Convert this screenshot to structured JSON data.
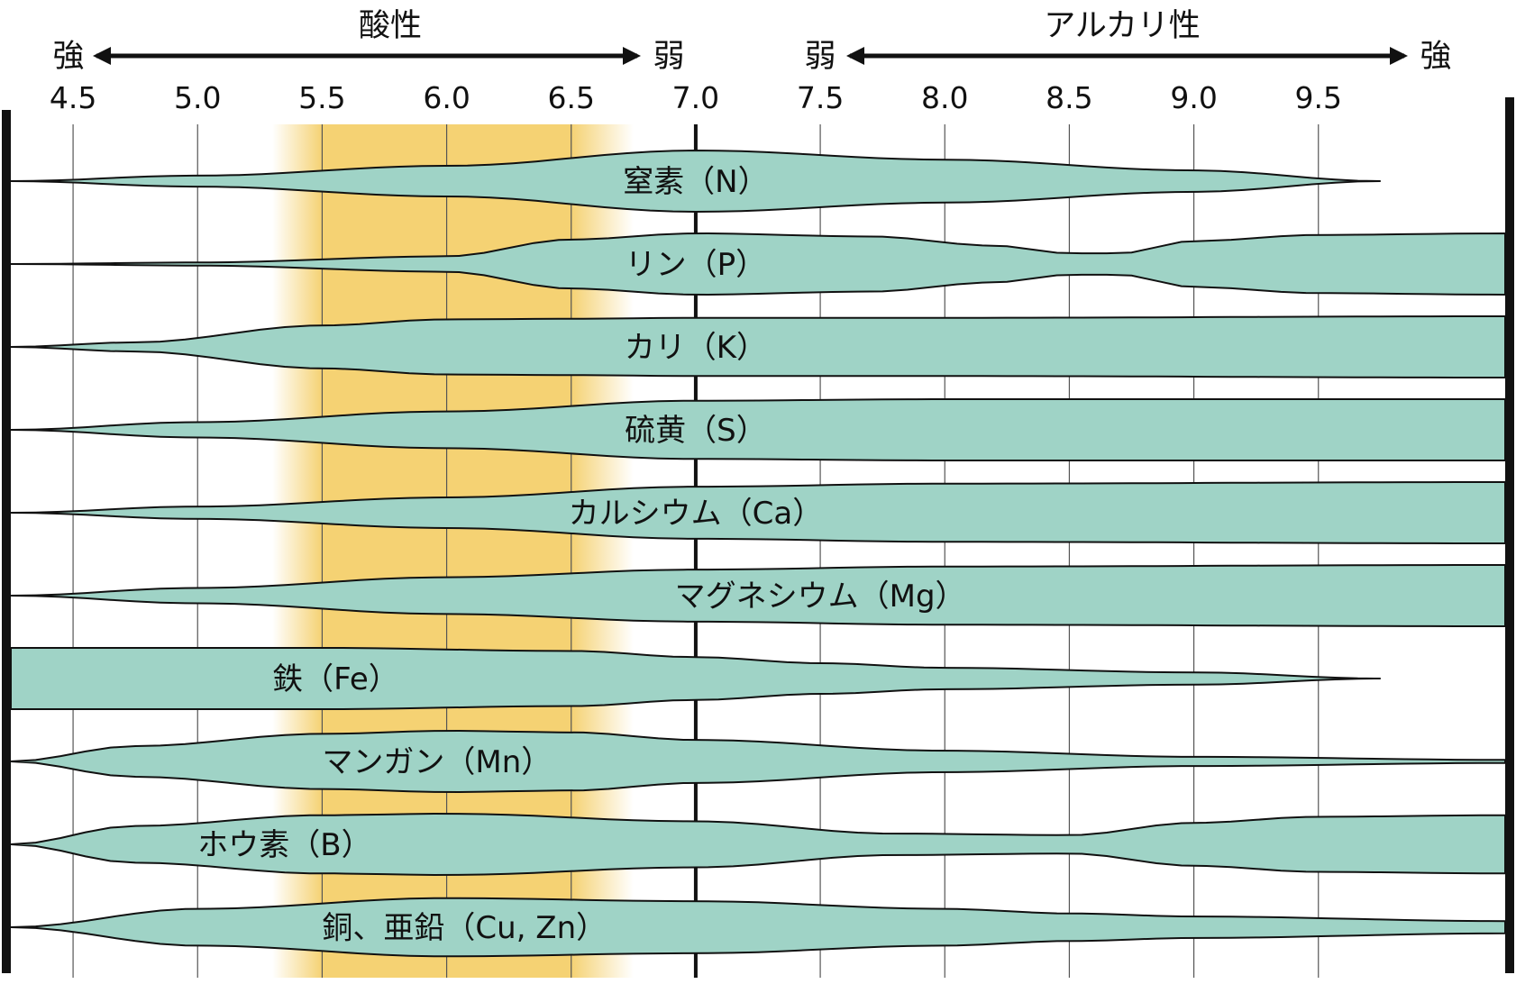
{
  "chart_data": {
    "type": "area",
    "title": "",
    "x_axis": {
      "range": [
        4.25,
        10.25
      ],
      "ticks": [
        4.5,
        5.0,
        5.5,
        6.0,
        6.5,
        7.0,
        7.5,
        8.0,
        8.5,
        9.0,
        9.5
      ],
      "tick_labels": [
        "4.5",
        "5.0",
        "5.5",
        "6.0",
        "6.5",
        "7.0",
        "7.5",
        "8.0",
        "8.5",
        "9.0",
        "9.5"
      ],
      "neutral": 7.0
    },
    "headers": {
      "acidic": "酸性",
      "alkaline": "アルカリ性",
      "strong": "強",
      "weak": "弱"
    },
    "optimal_range": {
      "from": 5.5,
      "to": 6.5,
      "fade_from": 5.3,
      "fade_to": 6.75,
      "color": "#f5d273"
    },
    "band_color": "#9fd3c6",
    "series": [
      {
        "name": "窒素（N）",
        "label_x": 7.0,
        "width": [
          [
            4.25,
            0
          ],
          [
            5.0,
            0.18
          ],
          [
            6.0,
            0.5
          ],
          [
            7.0,
            1.0
          ],
          [
            8.0,
            0.7
          ],
          [
            9.0,
            0.35
          ],
          [
            9.75,
            0
          ]
        ]
      },
      {
        "name": "リン（P）",
        "label_x": 7.0,
        "width": [
          [
            4.25,
            0
          ],
          [
            5.0,
            0.05
          ],
          [
            6.0,
            0.25
          ],
          [
            6.5,
            0.8
          ],
          [
            7.0,
            1.0
          ],
          [
            7.7,
            0.9
          ],
          [
            8.2,
            0.6
          ],
          [
            8.5,
            0.35
          ],
          [
            8.7,
            0.35
          ],
          [
            9.0,
            0.75
          ],
          [
            9.5,
            0.95
          ],
          [
            10.25,
            1.0
          ]
        ]
      },
      {
        "name": "カリ（K）",
        "label_x": 7.0,
        "width": [
          [
            4.25,
            0
          ],
          [
            4.75,
            0.15
          ],
          [
            5.5,
            0.7
          ],
          [
            6.0,
            0.9
          ],
          [
            6.5,
            0.92
          ],
          [
            7.0,
            0.95
          ],
          [
            8.0,
            0.95
          ],
          [
            10.25,
            1.0
          ]
        ]
      },
      {
        "name": "硫黄（S）",
        "label_x": 7.0,
        "width": [
          [
            4.25,
            0
          ],
          [
            5.0,
            0.25
          ],
          [
            6.0,
            0.6
          ],
          [
            7.0,
            0.95
          ],
          [
            8.0,
            1.0
          ],
          [
            10.25,
            1.0
          ]
        ]
      },
      {
        "name": "カルシウム（Ca）",
        "label_x": 7.0,
        "width": [
          [
            4.25,
            0
          ],
          [
            5.0,
            0.2
          ],
          [
            6.0,
            0.5
          ],
          [
            7.0,
            0.85
          ],
          [
            8.0,
            0.95
          ],
          [
            10.25,
            1.0
          ]
        ]
      },
      {
        "name": "マグネシウム（Mg）",
        "label_x": 7.5,
        "width": [
          [
            4.25,
            0
          ],
          [
            5.0,
            0.25
          ],
          [
            6.0,
            0.6
          ],
          [
            7.0,
            0.85
          ],
          [
            8.0,
            0.95
          ],
          [
            10.25,
            1.0
          ]
        ]
      },
      {
        "name": "鉄（Fe）",
        "label_x": 5.3,
        "width": [
          [
            4.25,
            1.0
          ],
          [
            5.5,
            1.0
          ],
          [
            6.5,
            0.9
          ],
          [
            7.0,
            0.7
          ],
          [
            7.5,
            0.5
          ],
          [
            8.0,
            0.35
          ],
          [
            9.0,
            0.2
          ],
          [
            9.75,
            0
          ]
        ]
      },
      {
        "name": "マンガン（Mn）",
        "label_x": 5.5,
        "width": [
          [
            4.25,
            0
          ],
          [
            4.75,
            0.5
          ],
          [
            5.5,
            0.9
          ],
          [
            6.0,
            1.0
          ],
          [
            6.5,
            0.95
          ],
          [
            7.0,
            0.7
          ],
          [
            8.0,
            0.35
          ],
          [
            9.0,
            0.15
          ],
          [
            10.25,
            0.05
          ]
        ]
      },
      {
        "name": "ホウ素（B）",
        "label_x": 5.0,
        "width": [
          [
            4.25,
            0
          ],
          [
            4.75,
            0.6
          ],
          [
            5.5,
            0.95
          ],
          [
            6.0,
            1.0
          ],
          [
            7.0,
            0.75
          ],
          [
            7.8,
            0.35
          ],
          [
            8.5,
            0.3
          ],
          [
            9.0,
            0.7
          ],
          [
            9.5,
            0.9
          ],
          [
            10.25,
            0.95
          ]
        ]
      },
      {
        "name": "銅、亜鉛（Cu, Zn）",
        "label_x": 5.5,
        "width": [
          [
            4.25,
            0
          ],
          [
            5.0,
            0.6
          ],
          [
            6.0,
            0.95
          ],
          [
            7.0,
            0.85
          ],
          [
            8.0,
            0.6
          ],
          [
            8.5,
            0.45
          ],
          [
            9.0,
            0.35
          ],
          [
            10.25,
            0.2
          ]
        ]
      }
    ]
  }
}
